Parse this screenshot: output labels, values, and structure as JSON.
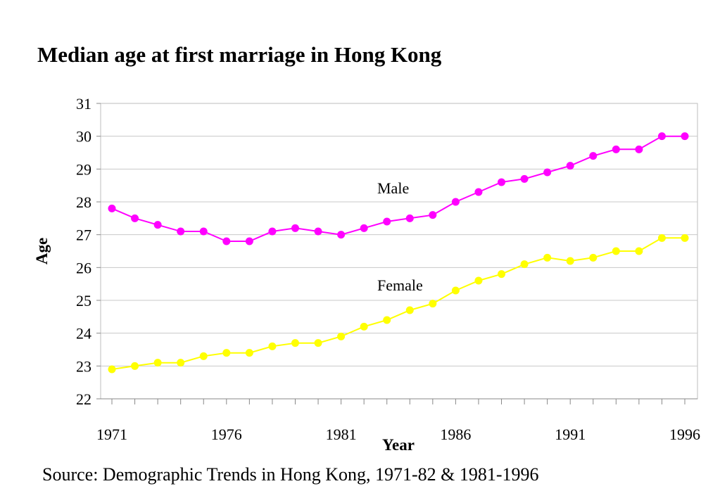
{
  "chart_data": {
    "type": "line",
    "title": "Median age at first marriage in Hong Kong",
    "xlabel": "Year",
    "ylabel": "Age",
    "xlim": [
      1971,
      1996
    ],
    "ylim": [
      22,
      31
    ],
    "x_ticks": [
      1971,
      1976,
      1981,
      1986,
      1991,
      1996
    ],
    "y_ticks": [
      22,
      23,
      24,
      25,
      26,
      27,
      28,
      29,
      30,
      31
    ],
    "grid": "horizontal",
    "legend": "none",
    "x": [
      1971,
      1972,
      1973,
      1974,
      1975,
      1976,
      1977,
      1978,
      1979,
      1980,
      1981,
      1982,
      1983,
      1984,
      1985,
      1986,
      1987,
      1988,
      1989,
      1990,
      1991,
      1992,
      1993,
      1994,
      1995,
      1996
    ],
    "series": [
      {
        "name": "Male",
        "color": "#ff00ff",
        "values": [
          27.8,
          27.5,
          27.3,
          27.1,
          27.1,
          26.8,
          26.8,
          27.1,
          27.2,
          27.1,
          27.0,
          27.2,
          27.4,
          27.5,
          27.6,
          28.0,
          28.3,
          28.6,
          28.7,
          28.9,
          29.1,
          29.4,
          29.6,
          29.6,
          30.0,
          30.0
        ]
      },
      {
        "name": "Female",
        "color": "#ffff00",
        "values": [
          22.9,
          23.0,
          23.1,
          23.1,
          23.3,
          23.4,
          23.4,
          23.6,
          23.7,
          23.7,
          23.9,
          24.2,
          24.4,
          24.7,
          24.9,
          25.3,
          25.6,
          25.8,
          26.1,
          26.3,
          26.2,
          26.3,
          26.5,
          26.5,
          26.9,
          26.9
        ]
      }
    ]
  },
  "source": "Source: Demographic Trends in Hong Kong, 1971-82 & 1981-1996"
}
